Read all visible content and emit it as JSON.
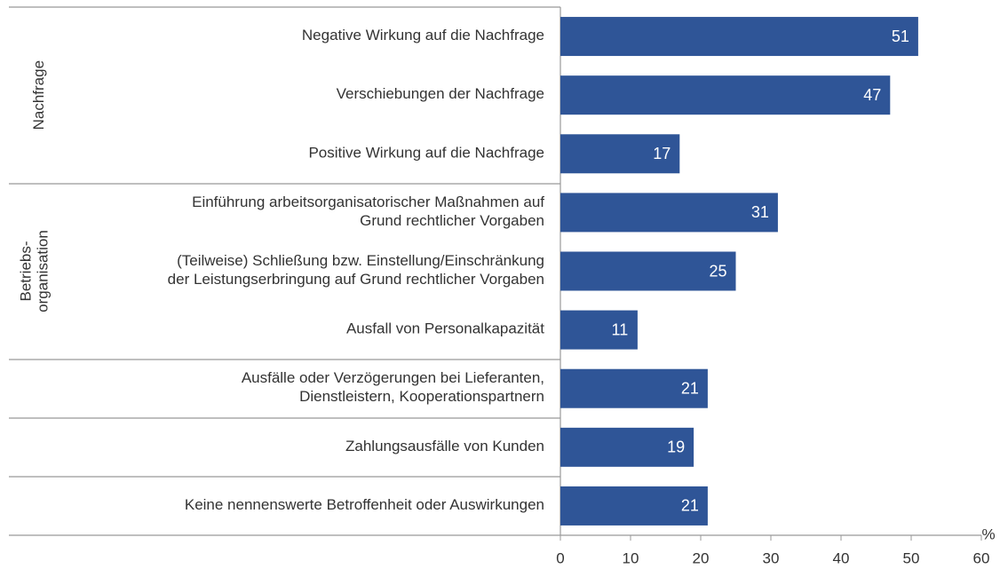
{
  "chart_data": {
    "type": "bar",
    "orientation": "horizontal",
    "categories": [
      "Negative Wirkung auf die Nachfrage",
      "Verschiebungen der Nachfrage",
      "Positive Wirkung auf die Nachfrage",
      "Einführung arbeitsorganisatorischer Maßnahmen auf\nGrund rechtlicher Vorgaben",
      "(Teilweise) Schließung bzw. Einstellung/Einschränkung\nder Leistungserbringung auf Grund rechtlicher Vorgaben",
      "Ausfall von Personalkapazität",
      "Ausfälle oder Verzögerungen bei Lieferanten,\nDienstleistern, Kooperationspartnern",
      "Zahlungsausfälle von Kunden",
      "Keine nennenswerte Betroffenheit oder Auswirkungen"
    ],
    "values": [
      51,
      47,
      17,
      31,
      25,
      11,
      21,
      19,
      21
    ],
    "color": "#2f5597",
    "groups": [
      "Nachfrage",
      "Betriebs-\norganisation"
    ],
    "xlabel": "%",
    "xlim": [
      0,
      60
    ],
    "xticks": [
      0,
      10,
      20,
      30,
      40,
      50,
      60
    ]
  }
}
